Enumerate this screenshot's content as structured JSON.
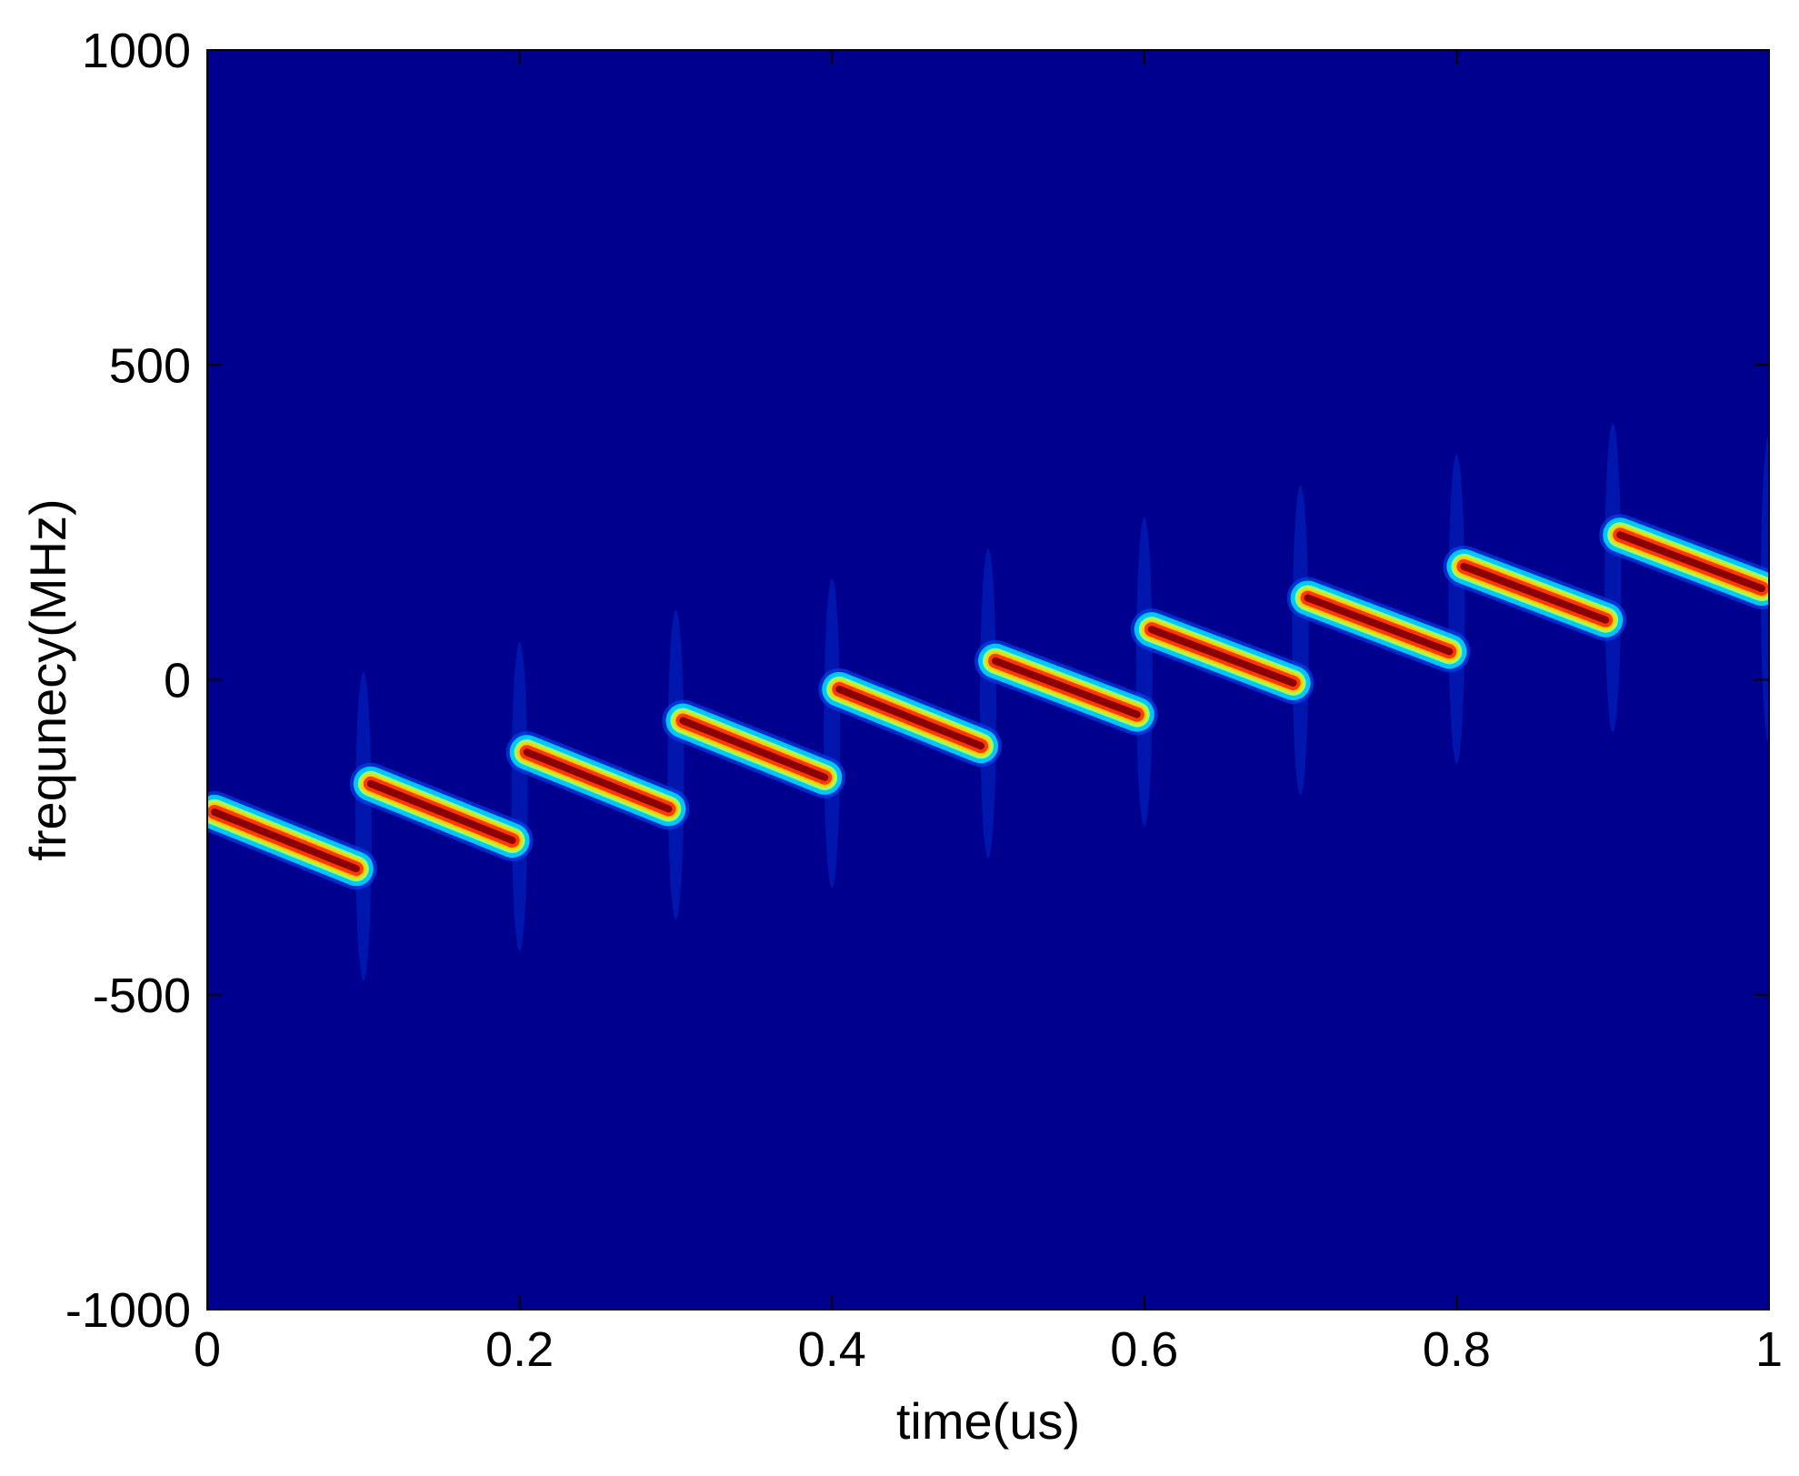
{
  "chart_data": {
    "type": "heatmap",
    "title": "",
    "xlabel": "time(us)",
    "ylabel": "frequnecy(MHz)",
    "xlim": [
      0,
      1
    ],
    "ylim": [
      -1000,
      1000
    ],
    "xticks": [
      0,
      0.2,
      0.4,
      0.6,
      0.8,
      1
    ],
    "xtick_labels": [
      "0",
      "0.2",
      "0.4",
      "0.6",
      "0.8",
      "1"
    ],
    "yticks": [
      -1000,
      -500,
      0,
      500,
      1000
    ],
    "ytick_labels": [
      "-1000",
      "-500",
      "0",
      "500",
      "1000"
    ],
    "grid": false,
    "colormap": "jet",
    "background_color": "#00008f",
    "segments": [
      {
        "t_start": 0.0,
        "t_end": 0.1,
        "f_start": -210,
        "f_end": -300
      },
      {
        "t_start": 0.1,
        "t_end": 0.2,
        "f_start": -165,
        "f_end": -255
      },
      {
        "t_start": 0.2,
        "t_end": 0.3,
        "f_start": -115,
        "f_end": -205
      },
      {
        "t_start": 0.3,
        "t_end": 0.4,
        "f_start": -65,
        "f_end": -155
      },
      {
        "t_start": 0.4,
        "t_end": 0.5,
        "f_start": -15,
        "f_end": -105
      },
      {
        "t_start": 0.5,
        "t_end": 0.6,
        "f_start": 30,
        "f_end": -55
      },
      {
        "t_start": 0.6,
        "t_end": 0.7,
        "f_start": 80,
        "f_end": -5
      },
      {
        "t_start": 0.7,
        "t_end": 0.8,
        "f_start": 130,
        "f_end": 45
      },
      {
        "t_start": 0.8,
        "t_end": 0.9,
        "f_start": 180,
        "f_end": 95
      },
      {
        "t_start": 0.9,
        "t_end": 1.0,
        "f_start": 230,
        "f_end": 145
      }
    ]
  }
}
